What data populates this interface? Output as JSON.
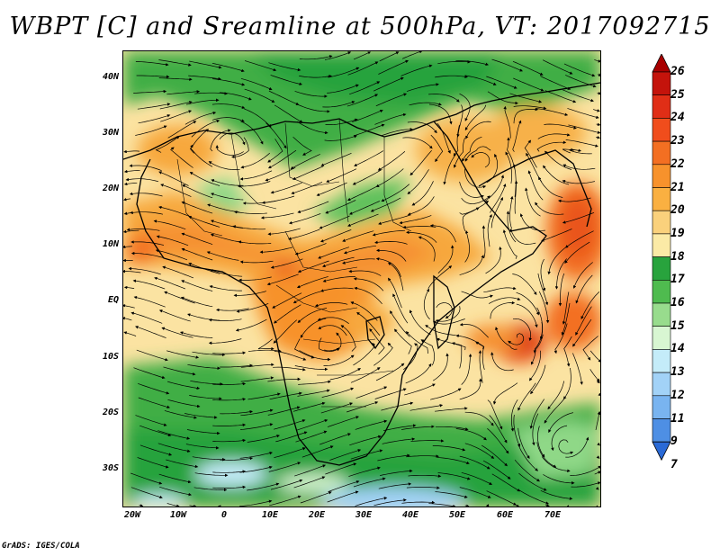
{
  "title": "WBPT [C] and Sreamline at 500hPa, VT: 2017092715",
  "lat_labels": [
    "40N",
    "30N",
    "20N",
    "10N",
    "EQ",
    "10S",
    "20S",
    "30S"
  ],
  "lon_labels": [
    "20W",
    "10W",
    "0",
    "10E",
    "20E",
    "30E",
    "40E",
    "50E",
    "60E",
    "70E"
  ],
  "colorbar": {
    "labels": [
      "26",
      "25",
      "24",
      "23",
      "22",
      "21",
      "20",
      "19",
      "18",
      "17",
      "16",
      "15",
      "14",
      "13",
      "12",
      "11",
      "9",
      "7"
    ],
    "colors": [
      "#a80000",
      "#c4130b",
      "#e02e16",
      "#f04d1c",
      "#f36f22",
      "#f7922c",
      "#fab041",
      "#fad17c",
      "#fbeaa6",
      "#28a33d",
      "#4fbb4f",
      "#98dc8d",
      "#d8f6d2",
      "#c4ecf9",
      "#a2d2f7",
      "#79b4f0",
      "#4e8fe4",
      "#2a6ad6"
    ]
  },
  "footer": "GrADS: IGES/COLA"
}
